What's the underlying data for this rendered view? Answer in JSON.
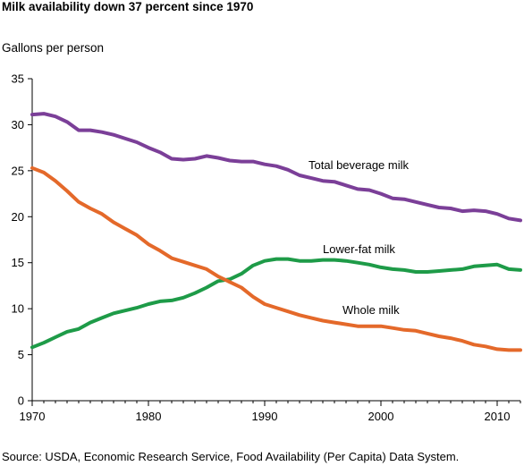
{
  "chart_data": {
    "type": "line",
    "title": "Milk availability down 37 percent since 1970",
    "ylabel": "Gallons per person",
    "xlabel": "",
    "source": "Source: USDA, Economic Research Service, Food Availability (Per Capita) Data System.",
    "xlim": [
      1970,
      2012
    ],
    "ylim": [
      0,
      35
    ],
    "x_ticks": [
      "1970",
      "1980",
      "1990",
      "2000",
      "2010"
    ],
    "y_ticks": [
      "0",
      "5",
      "10",
      "15",
      "20",
      "25",
      "30",
      "35"
    ],
    "grid": false,
    "x": [
      1970,
      1971,
      1972,
      1973,
      1974,
      1975,
      1976,
      1977,
      1978,
      1979,
      1980,
      1981,
      1982,
      1983,
      1984,
      1985,
      1986,
      1987,
      1988,
      1989,
      1990,
      1991,
      1992,
      1993,
      1994,
      1995,
      1996,
      1997,
      1998,
      1999,
      2000,
      2001,
      2002,
      2003,
      2004,
      2005,
      2006,
      2007,
      2008,
      2009,
      2010,
      2011,
      2012
    ],
    "series": [
      {
        "name": "Total beverage milk",
        "color": "#7b3f98",
        "values": [
          31.1,
          31.2,
          30.9,
          30.3,
          29.4,
          29.4,
          29.2,
          28.9,
          28.5,
          28.1,
          27.5,
          27.0,
          26.3,
          26.2,
          26.3,
          26.6,
          26.4,
          26.1,
          26.0,
          26.0,
          25.7,
          25.5,
          25.1,
          24.5,
          24.2,
          23.9,
          23.8,
          23.4,
          23.0,
          22.9,
          22.5,
          22.0,
          21.9,
          21.6,
          21.3,
          21.0,
          20.9,
          20.6,
          20.7,
          20.6,
          20.3,
          19.8,
          19.6
        ]
      },
      {
        "name": "Lower-fat milk",
        "color": "#1e9b48",
        "values": [
          5.8,
          6.3,
          6.9,
          7.5,
          7.8,
          8.5,
          9.0,
          9.5,
          9.8,
          10.1,
          10.5,
          10.8,
          10.9,
          11.2,
          11.7,
          12.3,
          13.0,
          13.2,
          13.8,
          14.7,
          15.2,
          15.4,
          15.4,
          15.2,
          15.2,
          15.3,
          15.3,
          15.2,
          15.0,
          14.8,
          14.5,
          14.3,
          14.2,
          14.0,
          14.0,
          14.1,
          14.2,
          14.3,
          14.6,
          14.7,
          14.8,
          14.3,
          14.2
        ]
      },
      {
        "name": "Whole milk",
        "color": "#e4692a",
        "values": [
          25.3,
          24.8,
          23.9,
          22.8,
          21.6,
          20.9,
          20.3,
          19.4,
          18.7,
          18.0,
          17.0,
          16.3,
          15.5,
          15.1,
          14.7,
          14.3,
          13.5,
          12.9,
          12.3,
          11.3,
          10.5,
          10.1,
          9.7,
          9.3,
          9.0,
          8.7,
          8.5,
          8.3,
          8.1,
          8.1,
          8.1,
          7.9,
          7.7,
          7.6,
          7.3,
          7.0,
          6.8,
          6.5,
          6.1,
          5.9,
          5.6,
          5.5,
          5.5
        ]
      }
    ],
    "annotations": [
      {
        "text": "Total beverage milk",
        "series": "Total beverage milk"
      },
      {
        "text": "Lower-fat milk",
        "series": "Lower-fat milk"
      },
      {
        "text": "Whole milk",
        "series": "Whole milk"
      }
    ]
  }
}
